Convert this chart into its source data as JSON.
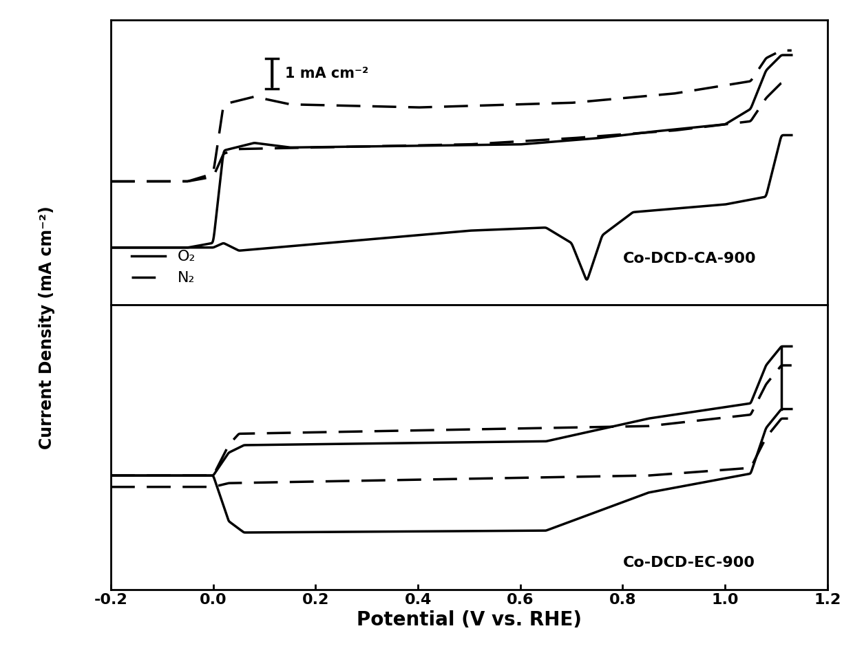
{
  "xlim": [
    -0.2,
    1.2
  ],
  "xlabel": "Potential (V vs. RHE)",
  "ylabel": "Current Density (mA cm⁻²)",
  "top_label": "Co-DCD-CA-900",
  "bottom_label": "Co-DCD-EC-900",
  "legend_solid": "O₂",
  "legend_dashed": "N₂",
  "scale_bar_text": "1 mA cm⁻²",
  "line_color": "#000000",
  "line_width": 2.5,
  "dash_pattern": [
    10,
    5
  ],
  "background_color": "#ffffff",
  "xticks": [
    -0.2,
    0.0,
    0.2,
    0.4,
    0.6,
    0.8,
    1.0,
    1.2
  ],
  "xlabel_fontsize": 20,
  "ylabel_fontsize": 17,
  "tick_fontsize": 16,
  "label_fontsize": 15,
  "annot_fontsize": 15
}
